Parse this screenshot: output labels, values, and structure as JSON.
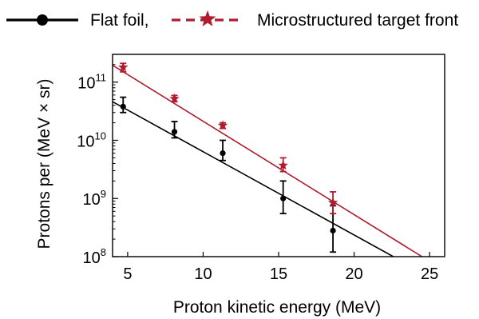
{
  "chart_data": {
    "type": "scatter",
    "xlabel": "Proton kinetic energy (MeV)",
    "ylabel": "Protons per (MeV × sr)",
    "yscale": "log",
    "xlim": [
      4,
      26
    ],
    "ylim": [
      100000000.0,
      300000000000.0
    ],
    "xticks": [
      5,
      10,
      15,
      20,
      25
    ],
    "yticks": [
      {
        "value": 100000000.0,
        "base": "10",
        "exp": "8"
      },
      {
        "value": 1000000000.0,
        "base": "10",
        "exp": "9"
      },
      {
        "value": 10000000000.0,
        "base": "10",
        "exp": "10"
      },
      {
        "value": 100000000000.0,
        "base": "10",
        "exp": "11"
      }
    ],
    "grid": false,
    "legend": "top",
    "series": [
      {
        "name": "Flat foil,",
        "color": "#000000",
        "marker": "circle",
        "line": "solid",
        "x": [
          4.7,
          8.1,
          11.3,
          15.3,
          18.6
        ],
        "y": [
          38000000000.0,
          14000000000.0,
          6000000000.0,
          1000000000.0,
          280000000.0
        ],
        "y_err_low": [
          30000000000.0,
          11000000000.0,
          4500000000.0,
          550000000.0,
          120000000.0
        ],
        "y_err_high": [
          55000000000.0,
          21000000000.0,
          10000000000.0,
          2000000000.0,
          750000000.0
        ],
        "fit": {
          "x": [
            4.0,
            22.6
          ],
          "y": [
            46000000000.0,
            100000000.0
          ]
        }
      },
      {
        "name": "Microstructured target front",
        "color": "#b01c2e",
        "marker": "star",
        "line": "dashed",
        "x": [
          4.7,
          8.1,
          11.3,
          15.3,
          18.6
        ],
        "y": [
          180000000000.0,
          52000000000.0,
          18000000000.0,
          3700000000.0,
          850000000.0
        ],
        "y_err_low": [
          150000000000.0,
          46000000000.0,
          16000000000.0,
          2900000000.0,
          550000000.0
        ],
        "y_err_high": [
          210000000000.0,
          59000000000.0,
          20000000000.0,
          5000000000.0,
          1300000000.0
        ],
        "fit": {
          "x": [
            4.0,
            24.5
          ],
          "y": [
            195000000000.0,
            100000000.0
          ]
        }
      }
    ]
  }
}
